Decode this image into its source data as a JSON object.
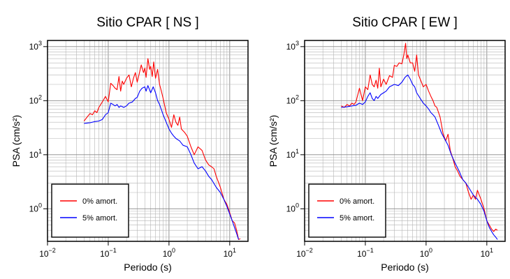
{
  "chart_data": [
    {
      "type": "line",
      "title": "Sitio CPAR [ NS ]",
      "xlabel": "Periodo (s)",
      "ylabel": "PSA (cm/s²)",
      "xscale": "log",
      "yscale": "log",
      "xlim": [
        0.01,
        20
      ],
      "ylim": [
        0.25,
        1300
      ],
      "x_ticks": [
        {
          "v": 0.01,
          "m": "10",
          "e": "−2"
        },
        {
          "v": 0.1,
          "m": "10",
          "e": "−1"
        },
        {
          "v": 1,
          "m": "10",
          "e": "0"
        },
        {
          "v": 10,
          "m": "10",
          "e": "1"
        }
      ],
      "y_ticks": [
        {
          "v": 1,
          "m": "10",
          "e": "0"
        },
        {
          "v": 10,
          "m": "10",
          "e": "1"
        },
        {
          "v": 100,
          "m": "10",
          "e": "2"
        },
        {
          "v": 1000,
          "m": "10",
          "e": "3"
        }
      ],
      "grid": true,
      "legend_position": "bottom-left",
      "series": [
        {
          "name": "0% amort.",
          "color": "#ff0000",
          "points": [
            [
              0.04,
              42
            ],
            [
              0.045,
              50
            ],
            [
              0.05,
              58
            ],
            [
              0.055,
              55
            ],
            [
              0.06,
              65
            ],
            [
              0.065,
              60
            ],
            [
              0.07,
              75
            ],
            [
              0.08,
              95
            ],
            [
              0.09,
              120
            ],
            [
              0.1,
              95
            ],
            [
              0.11,
              210
            ],
            [
              0.12,
              190
            ],
            [
              0.13,
              170
            ],
            [
              0.14,
              160
            ],
            [
              0.15,
              280
            ],
            [
              0.16,
              150
            ],
            [
              0.17,
              230
            ],
            [
              0.18,
              200
            ],
            [
              0.2,
              260
            ],
            [
              0.22,
              300
            ],
            [
              0.24,
              180
            ],
            [
              0.26,
              260
            ],
            [
              0.28,
              330
            ],
            [
              0.3,
              220
            ],
            [
              0.32,
              300
            ],
            [
              0.35,
              460
            ],
            [
              0.38,
              330
            ],
            [
              0.4,
              400
            ],
            [
              0.42,
              270
            ],
            [
              0.45,
              600
            ],
            [
              0.48,
              380
            ],
            [
              0.5,
              430
            ],
            [
              0.53,
              280
            ],
            [
              0.56,
              520
            ],
            [
              0.6,
              260
            ],
            [
              0.65,
              380
            ],
            [
              0.7,
              200
            ],
            [
              0.75,
              150
            ],
            [
              0.8,
              110
            ],
            [
              0.9,
              60
            ],
            [
              1.0,
              45
            ],
            [
              1.1,
              32
            ],
            [
              1.2,
              55
            ],
            [
              1.3,
              40
            ],
            [
              1.4,
              35
            ],
            [
              1.5,
              50
            ],
            [
              1.6,
              30
            ],
            [
              1.8,
              26
            ],
            [
              2.0,
              22
            ],
            [
              2.3,
              14
            ],
            [
              2.6,
              10
            ],
            [
              3.0,
              14
            ],
            [
              3.5,
              12
            ],
            [
              4.0,
              8
            ],
            [
              4.5,
              6.5
            ],
            [
              5.0,
              6
            ],
            [
              5.5,
              5.5
            ],
            [
              6.0,
              4
            ],
            [
              7.0,
              2.5
            ],
            [
              8.0,
              1.5
            ],
            [
              9.0,
              1.2
            ],
            [
              10.0,
              0.85
            ],
            [
              11.0,
              0.6
            ],
            [
              12.0,
              0.55
            ],
            [
              13.0,
              0.4
            ],
            [
              14.0,
              0.27
            ],
            [
              15.0,
              0.28
            ]
          ]
        },
        {
          "name": "5% amort.",
          "color": "#0000ff",
          "points": [
            [
              0.04,
              38
            ],
            [
              0.05,
              39
            ],
            [
              0.06,
              41
            ],
            [
              0.07,
              42
            ],
            [
              0.08,
              45
            ],
            [
              0.09,
              55
            ],
            [
              0.1,
              60
            ],
            [
              0.11,
              90
            ],
            [
              0.12,
              85
            ],
            [
              0.13,
              80
            ],
            [
              0.14,
              85
            ],
            [
              0.15,
              75
            ],
            [
              0.16,
              80
            ],
            [
              0.18,
              75
            ],
            [
              0.2,
              80
            ],
            [
              0.22,
              90
            ],
            [
              0.25,
              95
            ],
            [
              0.28,
              110
            ],
            [
              0.3,
              115
            ],
            [
              0.33,
              150
            ],
            [
              0.36,
              170
            ],
            [
              0.4,
              180
            ],
            [
              0.42,
              150
            ],
            [
              0.45,
              190
            ],
            [
              0.5,
              140
            ],
            [
              0.55,
              180
            ],
            [
              0.6,
              140
            ],
            [
              0.65,
              100
            ],
            [
              0.7,
              85
            ],
            [
              0.8,
              55
            ],
            [
              0.9,
              40
            ],
            [
              1.0,
              30
            ],
            [
              1.1,
              25
            ],
            [
              1.2,
              22
            ],
            [
              1.3,
              20
            ],
            [
              1.5,
              18
            ],
            [
              1.7,
              15
            ],
            [
              2.0,
              14
            ],
            [
              2.3,
              10
            ],
            [
              2.6,
              7
            ],
            [
              3.0,
              5.5
            ],
            [
              3.5,
              6
            ],
            [
              4.0,
              5
            ],
            [
              4.5,
              4
            ],
            [
              5.0,
              3.5
            ],
            [
              6.0,
              2.5
            ],
            [
              7.0,
              2
            ],
            [
              8.0,
              1.5
            ],
            [
              9.0,
              1.1
            ],
            [
              10.0,
              0.8
            ],
            [
              11.0,
              0.6
            ],
            [
              12.0,
              0.45
            ],
            [
              13.0,
              0.35
            ],
            [
              14.0,
              0.27
            ]
          ]
        }
      ]
    },
    {
      "type": "line",
      "title": "Sitio CPAR [ EW ]",
      "xlabel": "Periodo (s)",
      "ylabel": "PSA (cm/s²)",
      "xscale": "log",
      "yscale": "log",
      "xlim": [
        0.01,
        20
      ],
      "ylim": [
        0.25,
        1300
      ],
      "x_ticks": [
        {
          "v": 0.01,
          "m": "10",
          "e": "−2"
        },
        {
          "v": 0.1,
          "m": "10",
          "e": "−1"
        },
        {
          "v": 1,
          "m": "10",
          "e": "0"
        },
        {
          "v": 10,
          "m": "10",
          "e": "1"
        }
      ],
      "y_ticks": [
        {
          "v": 1,
          "m": "10",
          "e": "0"
        },
        {
          "v": 10,
          "m": "10",
          "e": "1"
        },
        {
          "v": 100,
          "m": "10",
          "e": "2"
        },
        {
          "v": 1000,
          "m": "10",
          "e": "3"
        }
      ],
      "grid": true,
      "legend_position": "bottom-left",
      "series": [
        {
          "name": "0% amort.",
          "color": "#ff0000",
          "points": [
            [
              0.04,
              80
            ],
            [
              0.045,
              75
            ],
            [
              0.05,
              85
            ],
            [
              0.055,
              80
            ],
            [
              0.06,
              90
            ],
            [
              0.065,
              85
            ],
            [
              0.07,
              95
            ],
            [
              0.08,
              170
            ],
            [
              0.09,
              100
            ],
            [
              0.1,
              180
            ],
            [
              0.11,
              160
            ],
            [
              0.12,
              300
            ],
            [
              0.13,
              200
            ],
            [
              0.14,
              180
            ],
            [
              0.15,
              240
            ],
            [
              0.16,
              170
            ],
            [
              0.17,
              400
            ],
            [
              0.18,
              180
            ],
            [
              0.2,
              250
            ],
            [
              0.22,
              200
            ],
            [
              0.25,
              290
            ],
            [
              0.28,
              270
            ],
            [
              0.3,
              450
            ],
            [
              0.33,
              430
            ],
            [
              0.36,
              500
            ],
            [
              0.4,
              480
            ],
            [
              0.43,
              700
            ],
            [
              0.46,
              1150
            ],
            [
              0.48,
              600
            ],
            [
              0.5,
              700
            ],
            [
              0.55,
              500
            ],
            [
              0.6,
              500
            ],
            [
              0.65,
              350
            ],
            [
              0.7,
              700
            ],
            [
              0.75,
              300
            ],
            [
              0.8,
              250
            ],
            [
              0.9,
              180
            ],
            [
              1.0,
              200
            ],
            [
              1.1,
              150
            ],
            [
              1.2,
              120
            ],
            [
              1.3,
              100
            ],
            [
              1.4,
              80
            ],
            [
              1.5,
              75
            ],
            [
              1.7,
              50
            ],
            [
              1.9,
              25
            ],
            [
              2.1,
              18
            ],
            [
              2.3,
              24
            ],
            [
              2.5,
              12
            ],
            [
              2.8,
              8
            ],
            [
              3.0,
              6
            ],
            [
              3.3,
              5
            ],
            [
              3.6,
              4
            ],
            [
              4.0,
              3.5
            ],
            [
              4.5,
              3
            ],
            [
              5.0,
              2
            ],
            [
              5.5,
              1.5
            ],
            [
              6.0,
              1.8
            ],
            [
              6.5,
              1.5
            ],
            [
              7.0,
              2.2
            ],
            [
              8.0,
              1.5
            ],
            [
              9.0,
              1.0
            ],
            [
              10.0,
              0.6
            ],
            [
              11.0,
              0.5
            ],
            [
              12.0,
              0.42
            ],
            [
              13.0,
              0.38
            ],
            [
              14.0,
              0.42
            ],
            [
              15.0,
              0.4
            ]
          ]
        },
        {
          "name": "5% amort.",
          "color": "#0000ff",
          "points": [
            [
              0.04,
              75
            ],
            [
              0.05,
              77
            ],
            [
              0.06,
              80
            ],
            [
              0.07,
              82
            ],
            [
              0.08,
              90
            ],
            [
              0.09,
              85
            ],
            [
              0.1,
              95
            ],
            [
              0.11,
              120
            ],
            [
              0.12,
              140
            ],
            [
              0.13,
              110
            ],
            [
              0.14,
              100
            ],
            [
              0.15,
              120
            ],
            [
              0.16,
              110
            ],
            [
              0.18,
              130
            ],
            [
              0.2,
              140
            ],
            [
              0.22,
              150
            ],
            [
              0.25,
              180
            ],
            [
              0.3,
              200
            ],
            [
              0.35,
              190
            ],
            [
              0.4,
              220
            ],
            [
              0.45,
              270
            ],
            [
              0.5,
              300
            ],
            [
              0.55,
              250
            ],
            [
              0.6,
              200
            ],
            [
              0.65,
              180
            ],
            [
              0.7,
              140
            ],
            [
              0.8,
              110
            ],
            [
              0.9,
              90
            ],
            [
              1.0,
              80
            ],
            [
              1.1,
              70
            ],
            [
              1.2,
              60
            ],
            [
              1.3,
              55
            ],
            [
              1.4,
              50
            ],
            [
              1.6,
              35
            ],
            [
              1.8,
              25
            ],
            [
              2.0,
              20
            ],
            [
              2.3,
              15
            ],
            [
              2.6,
              10
            ],
            [
              3.0,
              7
            ],
            [
              3.5,
              5
            ],
            [
              4.0,
              3.5
            ],
            [
              4.5,
              3
            ],
            [
              5.0,
              2.5
            ],
            [
              6.0,
              1.8
            ],
            [
              7.0,
              1.5
            ],
            [
              8.0,
              1.2
            ],
            [
              9.0,
              0.9
            ],
            [
              10.0,
              0.6
            ],
            [
              11.0,
              0.45
            ],
            [
              12.0,
              0.38
            ],
            [
              13.0,
              0.33
            ],
            [
              14.0,
              0.3
            ],
            [
              15.0,
              0.27
            ]
          ]
        }
      ]
    }
  ]
}
